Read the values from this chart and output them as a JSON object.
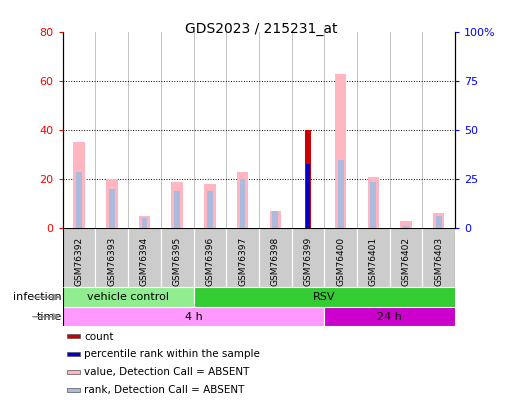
{
  "title": "GDS2023 / 215231_at",
  "samples": [
    "GSM76392",
    "GSM76393",
    "GSM76394",
    "GSM76395",
    "GSM76396",
    "GSM76397",
    "GSM76398",
    "GSM76399",
    "GSM76400",
    "GSM76401",
    "GSM76402",
    "GSM76403"
  ],
  "value_absent": [
    35,
    20,
    5,
    19,
    18,
    23,
    7,
    0,
    63,
    21,
    3,
    6
  ],
  "rank_absent": [
    23,
    16,
    4,
    15,
    15,
    20,
    7,
    0,
    28,
    19,
    1,
    5
  ],
  "count": [
    0,
    0,
    0,
    0,
    0,
    0,
    0,
    40,
    0,
    0,
    0,
    0
  ],
  "percentile_rank": [
    0,
    0,
    0,
    0,
    0,
    0,
    0,
    26,
    0,
    0,
    0,
    0
  ],
  "infection_groups": [
    {
      "label": "vehicle control",
      "start": 0,
      "end": 4,
      "color": "#90ee90"
    },
    {
      "label": "RSV",
      "start": 4,
      "end": 12,
      "color": "#33cc33"
    }
  ],
  "time_groups": [
    {
      "label": "4 h",
      "start": 0,
      "end": 8,
      "color": "#ff99ff"
    },
    {
      "label": "24 h",
      "start": 8,
      "end": 12,
      "color": "#cc00cc"
    }
  ],
  "ylim_left": [
    0,
    80
  ],
  "ylim_right": [
    0,
    100
  ],
  "yticks_left": [
    0,
    20,
    40,
    60,
    80
  ],
  "yticks_right": [
    0,
    25,
    50,
    75,
    100
  ],
  "ytick_labels_right": [
    "0",
    "25",
    "50",
    "75",
    "100%"
  ],
  "color_count": "#cc0000",
  "color_percentile": "#0000cc",
  "color_value_absent": "#ffb6c1",
  "color_rank_absent": "#aabbdd",
  "background_sample": "#cccccc",
  "legend_items": [
    {
      "label": "count",
      "color": "#cc0000"
    },
    {
      "label": "percentile rank within the sample",
      "color": "#0000cc"
    },
    {
      "label": "value, Detection Call = ABSENT",
      "color": "#ffb6c1"
    },
    {
      "label": "rank, Detection Call = ABSENT",
      "color": "#aabbdd"
    }
  ],
  "infection_label": "infection",
  "time_label": "time"
}
